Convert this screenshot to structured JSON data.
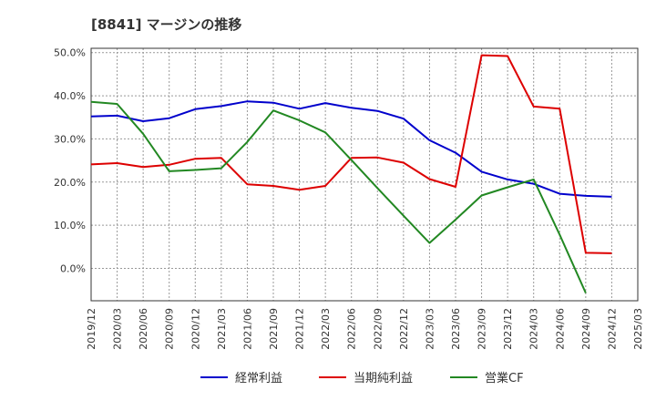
{
  "chart_data": {
    "type": "line",
    "title": "[8841]  マージンの推移",
    "xlabel": "",
    "ylabel": "",
    "ylim": [
      -7.5,
      51
    ],
    "yticks": [
      0,
      10,
      20,
      30,
      40,
      50
    ],
    "ytick_labels": [
      "0.0%",
      "10.0%",
      "20.0%",
      "30.0%",
      "40.0%",
      "50.0%"
    ],
    "x": [
      "2019/12",
      "2020/03",
      "2020/06",
      "2020/09",
      "2020/12",
      "2021/03",
      "2021/06",
      "2021/09",
      "2021/12",
      "2022/03",
      "2022/06",
      "2022/09",
      "2022/12",
      "2023/03",
      "2023/06",
      "2023/09",
      "2023/12",
      "2024/03",
      "2024/06",
      "2024/09",
      "2024/12",
      "2025/03"
    ],
    "grid": true,
    "legend_position": "bottom",
    "series": [
      {
        "name": "経常利益",
        "color": "#0000cc",
        "values": [
          35.2,
          35.4,
          34.1,
          34.8,
          36.9,
          37.6,
          38.7,
          38.4,
          37.0,
          38.3,
          37.2,
          36.5,
          34.7,
          29.7,
          26.8,
          22.4,
          20.6,
          19.6,
          17.3,
          16.8,
          16.6,
          null
        ]
      },
      {
        "name": "当期純利益",
        "color": "#dd0000",
        "values": [
          24.1,
          24.4,
          23.5,
          24.0,
          25.4,
          25.6,
          19.5,
          19.1,
          18.2,
          19.1,
          25.6,
          25.7,
          24.5,
          20.7,
          18.9,
          49.4,
          49.2,
          37.5,
          37.0,
          3.6,
          3.5,
          null
        ]
      },
      {
        "name": "営業CF",
        "color": "#228822",
        "values": [
          38.6,
          38.1,
          31.2,
          22.5,
          22.8,
          23.2,
          29.3,
          36.6,
          34.3,
          31.5,
          25.1,
          18.6,
          12.2,
          5.9,
          11.3,
          16.9,
          18.8,
          20.6,
          7.8,
          -5.7,
          null,
          null
        ]
      }
    ]
  }
}
